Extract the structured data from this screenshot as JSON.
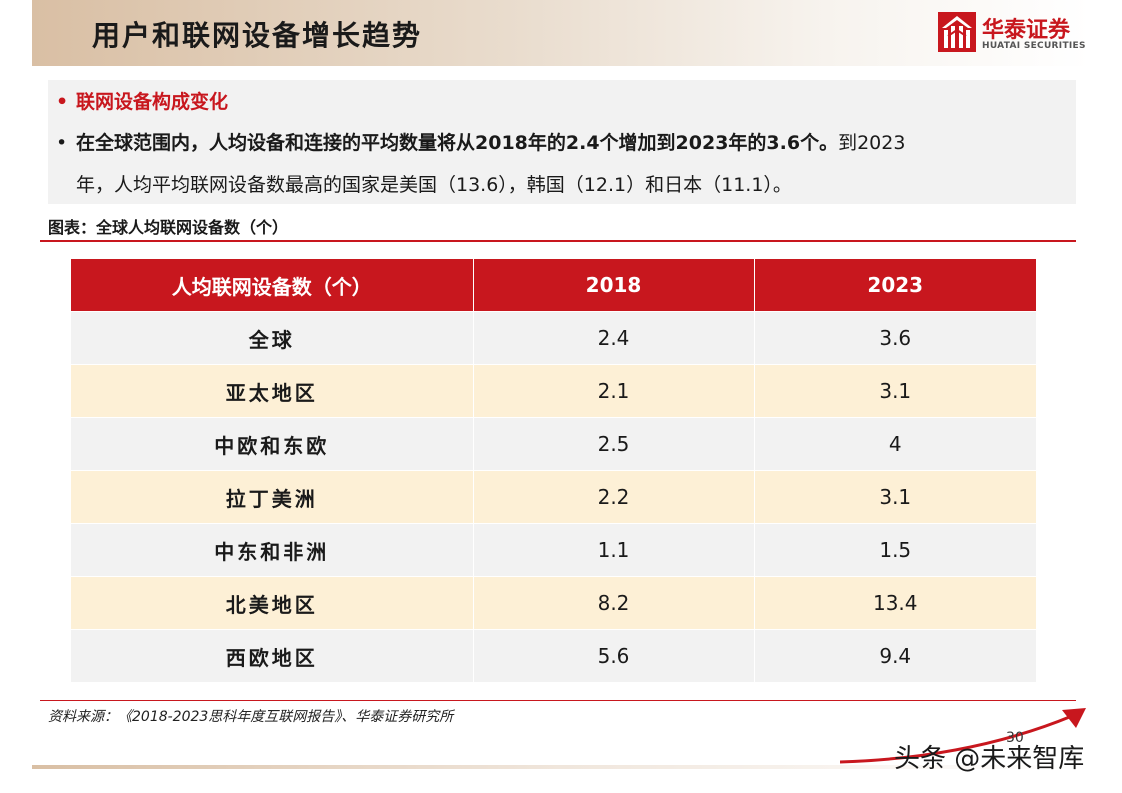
{
  "header": {
    "title": "用户和联网设备增长趋势",
    "logo_cn": "华泰证券",
    "logo_en": "HUATAI SECURITIES"
  },
  "bullets": {
    "b1": "联网设备构成变化",
    "b2_bold": "在全球范围内，人均设备和连接的平均数量将从2018年的2.4个增加到2023年的3.6个。",
    "b2_normal_1": "到2023",
    "b2_normal_2": "年，人均平均联网设备数最高的国家是美国（13.6），韩国（12.1）和日本（11.1）。"
  },
  "figure_label": "图表：全球人均联网设备数（个）",
  "table": {
    "headers": [
      "人均联网设备数（个）",
      "2018",
      "2023"
    ],
    "rows": [
      [
        "全球",
        "2.4",
        "3.6"
      ],
      [
        "亚太地区",
        "2.1",
        "3.1"
      ],
      [
        "中欧和东欧",
        "2.5",
        "4"
      ],
      [
        "拉丁美洲",
        "2.2",
        "3.1"
      ],
      [
        "中东和非洲",
        "1.1",
        "1.5"
      ],
      [
        "北美地区",
        "8.2",
        "13.4"
      ],
      [
        "西欧地区",
        "5.6",
        "9.4"
      ]
    ]
  },
  "source": "资料来源：《2018-2023思科年度互联网报告》、华泰证券研究所",
  "page_number": "30",
  "watermark": "头条 @未来智库",
  "colors": {
    "brand_red": "#c8171e",
    "row_odd": "#f2f2f2",
    "row_even": "#fdf0d6"
  }
}
